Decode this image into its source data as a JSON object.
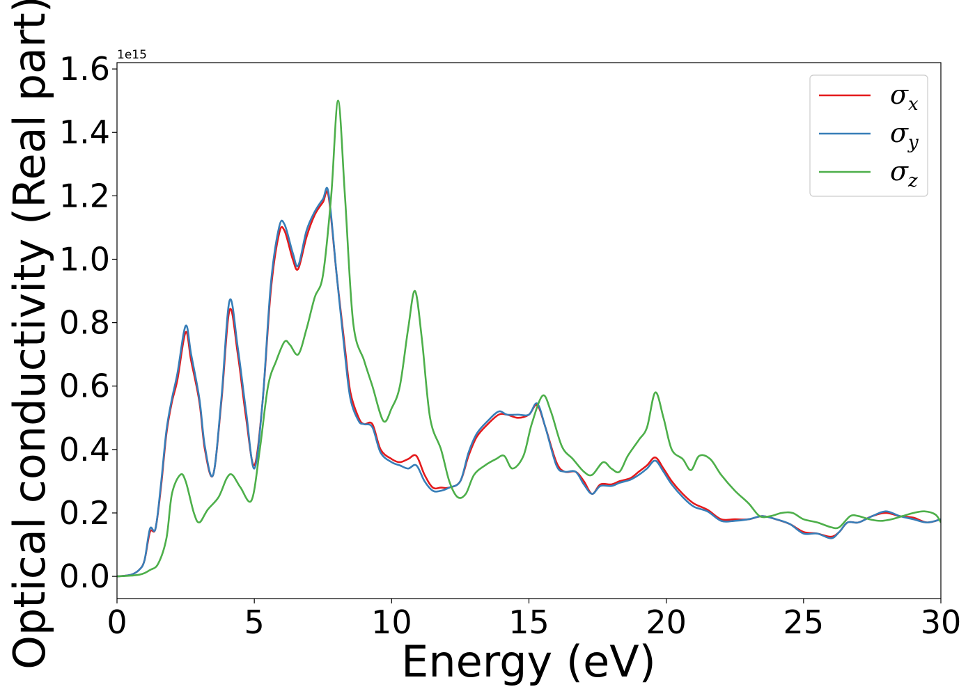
{
  "chart_data": {
    "type": "line",
    "xlabel": "Energy (eV)",
    "ylabel": "Optical conductivity (Real part)",
    "y_offset_label": "1e15",
    "xlim": [
      0,
      30
    ],
    "ylim": [
      -0.07,
      1.62
    ],
    "xticks": [
      0,
      5,
      10,
      15,
      20,
      25,
      30
    ],
    "xtick_labels": [
      "0",
      "5",
      "10",
      "15",
      "20",
      "25",
      "30"
    ],
    "yticks": [
      0.0,
      0.2,
      0.4,
      0.6,
      0.8,
      1.0,
      1.2,
      1.4,
      1.6
    ],
    "ytick_labels": [
      "0.0",
      "0.2",
      "0.4",
      "0.6",
      "0.8",
      "1.0",
      "1.2",
      "1.4",
      "1.6"
    ],
    "grid": false,
    "legend_position": "top-right",
    "series": [
      {
        "name": "σx",
        "label_main": "σ",
        "label_sub": "x",
        "color": "#e41a1c",
        "x": [
          0,
          0.5,
          0.8,
          1.0,
          1.2,
          1.4,
          1.6,
          1.8,
          2.0,
          2.2,
          2.5,
          2.7,
          3.0,
          3.2,
          3.5,
          3.8,
          4.1,
          4.4,
          4.7,
          5.0,
          5.3,
          5.6,
          5.9,
          6.1,
          6.4,
          6.6,
          6.9,
          7.2,
          7.5,
          7.7,
          8.0,
          8.3,
          8.5,
          8.8,
          9.0,
          9.3,
          9.6,
          10.0,
          10.3,
          10.6,
          10.9,
          11.2,
          11.5,
          11.8,
          12.1,
          12.5,
          12.8,
          13.1,
          13.5,
          13.9,
          14.2,
          14.6,
          15.0,
          15.3,
          15.6,
          16.0,
          16.3,
          16.7,
          17.0,
          17.3,
          17.6,
          18.0,
          18.3,
          18.7,
          19.0,
          19.3,
          19.6,
          19.9,
          20.2,
          20.6,
          21.0,
          21.5,
          22.0,
          22.5,
          23.0,
          23.5,
          24.0,
          24.5,
          25.0,
          25.5,
          26.0,
          26.3,
          26.6,
          27.0,
          27.5,
          28.0,
          28.5,
          29.0,
          29.5,
          30.0
        ],
        "y": [
          0,
          0.005,
          0.02,
          0.05,
          0.14,
          0.15,
          0.28,
          0.45,
          0.55,
          0.62,
          0.77,
          0.68,
          0.55,
          0.4,
          0.32,
          0.55,
          0.84,
          0.7,
          0.5,
          0.35,
          0.55,
          0.9,
          1.08,
          1.09,
          1.0,
          0.97,
          1.07,
          1.14,
          1.18,
          1.2,
          0.95,
          0.72,
          0.58,
          0.5,
          0.48,
          0.48,
          0.4,
          0.37,
          0.36,
          0.37,
          0.38,
          0.32,
          0.28,
          0.28,
          0.28,
          0.3,
          0.38,
          0.44,
          0.48,
          0.51,
          0.51,
          0.5,
          0.51,
          0.54,
          0.47,
          0.36,
          0.33,
          0.33,
          0.3,
          0.26,
          0.29,
          0.29,
          0.3,
          0.31,
          0.33,
          0.35,
          0.375,
          0.34,
          0.3,
          0.26,
          0.23,
          0.21,
          0.18,
          0.18,
          0.18,
          0.19,
          0.18,
          0.165,
          0.14,
          0.135,
          0.125,
          0.14,
          0.17,
          0.17,
          0.19,
          0.2,
          0.19,
          0.185,
          0.17,
          0.18
        ]
      },
      {
        "name": "σy",
        "label_main": "σ",
        "label_sub": "y",
        "color": "#377eb8",
        "x": [
          0,
          0.5,
          0.8,
          1.0,
          1.2,
          1.4,
          1.6,
          1.8,
          2.0,
          2.2,
          2.5,
          2.7,
          3.0,
          3.2,
          3.5,
          3.8,
          4.1,
          4.4,
          4.7,
          5.0,
          5.3,
          5.6,
          5.9,
          6.1,
          6.4,
          6.6,
          6.9,
          7.2,
          7.5,
          7.7,
          8.0,
          8.3,
          8.5,
          8.8,
          9.0,
          9.3,
          9.6,
          10.0,
          10.3,
          10.6,
          10.9,
          11.2,
          11.5,
          11.8,
          12.1,
          12.5,
          12.8,
          13.1,
          13.5,
          13.9,
          14.2,
          14.6,
          15.0,
          15.3,
          15.6,
          16.0,
          16.3,
          16.7,
          17.0,
          17.3,
          17.6,
          18.0,
          18.3,
          18.7,
          19.0,
          19.3,
          19.6,
          19.9,
          20.2,
          20.6,
          21.0,
          21.5,
          22.0,
          22.5,
          23.0,
          23.5,
          24.0,
          24.5,
          25.0,
          25.5,
          26.0,
          26.3,
          26.6,
          27.0,
          27.5,
          28.0,
          28.5,
          29.0,
          29.5,
          30.0
        ],
        "y": [
          0,
          0.005,
          0.02,
          0.05,
          0.15,
          0.15,
          0.29,
          0.46,
          0.56,
          0.64,
          0.79,
          0.7,
          0.56,
          0.41,
          0.32,
          0.56,
          0.87,
          0.72,
          0.52,
          0.34,
          0.55,
          0.92,
          1.1,
          1.11,
          1.02,
          0.98,
          1.09,
          1.15,
          1.19,
          1.21,
          0.95,
          0.7,
          0.56,
          0.49,
          0.48,
          0.47,
          0.39,
          0.36,
          0.35,
          0.34,
          0.35,
          0.3,
          0.27,
          0.27,
          0.28,
          0.3,
          0.39,
          0.45,
          0.49,
          0.52,
          0.51,
          0.51,
          0.51,
          0.545,
          0.47,
          0.35,
          0.33,
          0.33,
          0.29,
          0.26,
          0.285,
          0.285,
          0.295,
          0.305,
          0.32,
          0.34,
          0.365,
          0.33,
          0.29,
          0.25,
          0.22,
          0.205,
          0.175,
          0.175,
          0.18,
          0.19,
          0.18,
          0.165,
          0.135,
          0.135,
          0.12,
          0.14,
          0.17,
          0.17,
          0.19,
          0.205,
          0.19,
          0.18,
          0.17,
          0.18
        ]
      },
      {
        "name": "σz",
        "label_main": "σ",
        "label_sub": "z",
        "color": "#4daf4a",
        "x": [
          0,
          0.8,
          1.2,
          1.5,
          1.8,
          2.0,
          2.3,
          2.5,
          2.8,
          3.0,
          3.3,
          3.7,
          4.0,
          4.2,
          4.5,
          4.9,
          5.2,
          5.5,
          5.8,
          6.1,
          6.3,
          6.6,
          6.9,
          7.2,
          7.5,
          7.8,
          8.05,
          8.3,
          8.6,
          9.0,
          9.3,
          9.7,
          10.0,
          10.3,
          10.6,
          10.85,
          11.1,
          11.4,
          11.8,
          12.1,
          12.4,
          12.7,
          13.0,
          13.4,
          13.8,
          14.1,
          14.4,
          14.8,
          15.1,
          15.5,
          15.8,
          16.2,
          16.6,
          17.0,
          17.3,
          17.7,
          18.0,
          18.3,
          18.6,
          19.0,
          19.3,
          19.6,
          19.9,
          20.2,
          20.6,
          20.9,
          21.2,
          21.6,
          22.0,
          22.5,
          23.0,
          23.4,
          23.8,
          24.2,
          24.6,
          25.0,
          25.5,
          26.0,
          26.3,
          26.7,
          27.0,
          27.4,
          27.8,
          28.2,
          28.6,
          29.0,
          29.4,
          29.8,
          30.0
        ],
        "y": [
          0,
          0.005,
          0.02,
          0.04,
          0.12,
          0.26,
          0.32,
          0.3,
          0.2,
          0.17,
          0.21,
          0.25,
          0.31,
          0.32,
          0.28,
          0.24,
          0.4,
          0.6,
          0.68,
          0.74,
          0.73,
          0.7,
          0.78,
          0.88,
          0.95,
          1.2,
          1.5,
          1.2,
          0.8,
          0.68,
          0.6,
          0.49,
          0.53,
          0.6,
          0.78,
          0.9,
          0.75,
          0.5,
          0.4,
          0.3,
          0.25,
          0.26,
          0.32,
          0.35,
          0.37,
          0.38,
          0.34,
          0.38,
          0.48,
          0.57,
          0.52,
          0.41,
          0.37,
          0.33,
          0.32,
          0.36,
          0.34,
          0.33,
          0.38,
          0.43,
          0.47,
          0.58,
          0.5,
          0.4,
          0.37,
          0.335,
          0.38,
          0.37,
          0.32,
          0.27,
          0.23,
          0.19,
          0.19,
          0.2,
          0.2,
          0.18,
          0.17,
          0.155,
          0.155,
          0.19,
          0.19,
          0.18,
          0.175,
          0.18,
          0.19,
          0.2,
          0.205,
          0.195,
          0.17
        ]
      }
    ]
  }
}
